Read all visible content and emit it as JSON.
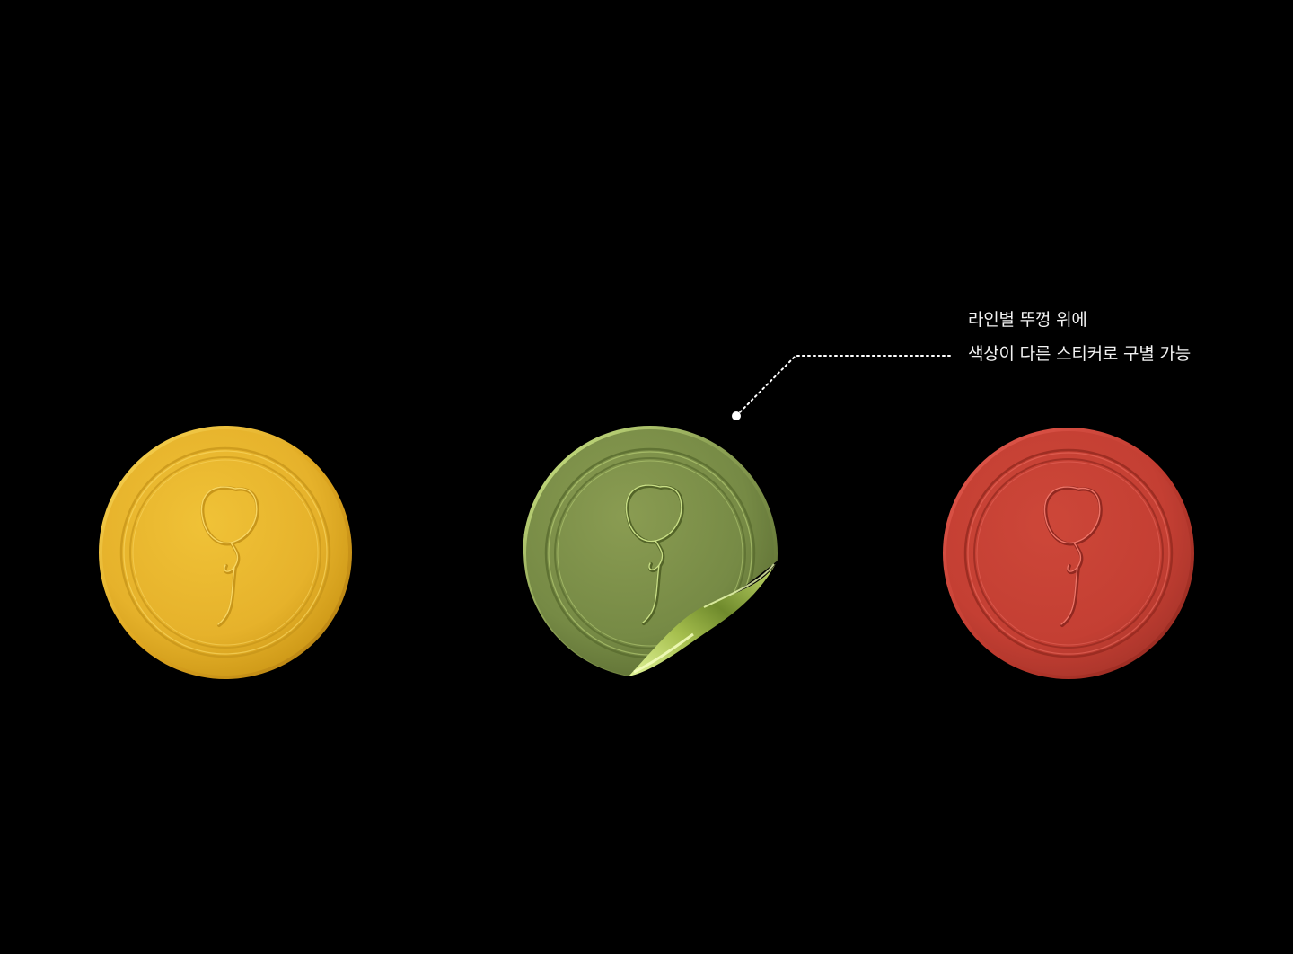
{
  "annotation": {
    "line1": "라인별 뚜껑 위에",
    "line2": "색상이 다른 스티커로 구별 가능"
  },
  "stickers": [
    {
      "name": "yellow-sticker",
      "color": "#e8b52c",
      "highlight": "#f7d24a",
      "shadow": "#c98f16"
    },
    {
      "name": "green-sticker",
      "color": "#7a8c48",
      "highlight": "#b8d06a",
      "shadow": "#5a6b30",
      "peeled": true
    },
    {
      "name": "red-sticker",
      "color": "#c84236",
      "highlight": "#e0554a",
      "shadow": "#9c2c22"
    }
  ],
  "colors": {
    "background": "#000000",
    "annotation_text": "#f2f2f2",
    "leader_line": "#ffffff"
  }
}
